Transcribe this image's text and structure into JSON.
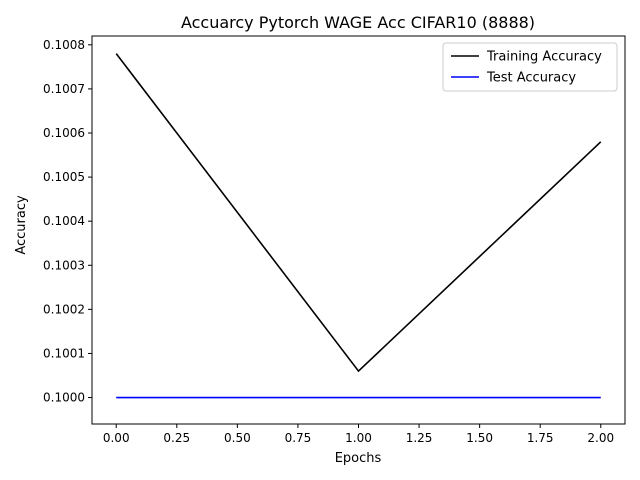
{
  "chart_data": {
    "type": "line",
    "title": "Accuarcy Pytorch WAGE Acc CIFAR10 (8888)",
    "xlabel": "Epochs",
    "ylabel": "Accuracy",
    "xlim": [
      -0.1,
      2.1
    ],
    "ylim": [
      0.09994,
      0.10082
    ],
    "xticks": [
      0.0,
      0.25,
      0.5,
      0.75,
      1.0,
      1.25,
      1.5,
      1.75,
      2.0
    ],
    "xtick_labels": [
      "0.00",
      "0.25",
      "0.50",
      "0.75",
      "1.00",
      "1.25",
      "1.50",
      "1.75",
      "2.00"
    ],
    "yticks": [
      0.1,
      0.1001,
      0.1002,
      0.1003,
      0.1004,
      0.1005,
      0.1006,
      0.1007,
      0.1008
    ],
    "ytick_labels": [
      "0.1000",
      "0.1001",
      "0.1002",
      "0.1003",
      "0.1004",
      "0.1005",
      "0.1006",
      "0.1007",
      "0.1008"
    ],
    "grid": false,
    "legend_position": "top-right",
    "x": [
      0,
      1,
      2
    ],
    "series": [
      {
        "name": "Training Accuracy",
        "color": "#000000",
        "values": [
          0.10078,
          0.10006,
          0.10058
        ]
      },
      {
        "name": "Test Accuracy",
        "color": "#0000ff",
        "values": [
          0.1,
          0.1,
          0.1
        ]
      }
    ]
  }
}
